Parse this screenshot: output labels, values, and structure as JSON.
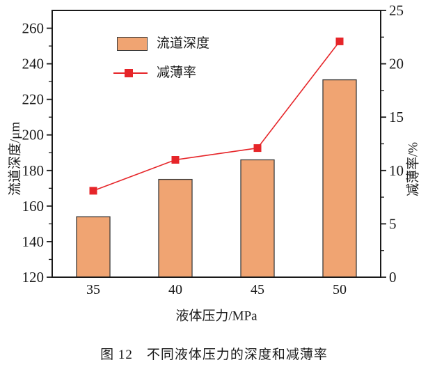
{
  "figure": {
    "caption": "图 12　不同液体压力的深度和减薄率"
  },
  "chart_data": {
    "type": "bar",
    "subtype": "combo-bar-line-dual-axis",
    "categories": [
      "35",
      "40",
      "45",
      "50"
    ],
    "series": [
      {
        "name": "流道深度",
        "plot": "bar",
        "axis": "left",
        "values": [
          154,
          175,
          186,
          231
        ],
        "fill_color": "#f0a472",
        "border_color": "#3b3b3b"
      },
      {
        "name": "减薄率",
        "plot": "line",
        "axis": "right",
        "values": [
          8.1,
          11,
          12.1,
          22.1
        ],
        "color": "#e62529",
        "marker": "square"
      }
    ],
    "xlabel": "液体压力/MPa",
    "ylabel_left": "流道深度/μm",
    "ylabel_right": "减薄率/%",
    "left_axis": {
      "min": 120,
      "max": 270,
      "major_step": 20,
      "minor_step": 10,
      "tick_labels": [
        "120",
        "140",
        "160",
        "180",
        "200",
        "220",
        "240",
        "260"
      ]
    },
    "right_axis": {
      "min": 0,
      "max": 25,
      "major_step": 5,
      "minor_step": 2.5,
      "tick_labels": [
        "0",
        "5",
        "10",
        "15",
        "20",
        "25"
      ]
    },
    "legend": {
      "position": "top-left-inside"
    },
    "grid": false,
    "colors": {
      "bar_fill": "#f0a472",
      "bar_border": "#3b3b3b",
      "line_red": "#e62529",
      "axis": "#1a1a1a",
      "background": "#ffffff"
    }
  }
}
